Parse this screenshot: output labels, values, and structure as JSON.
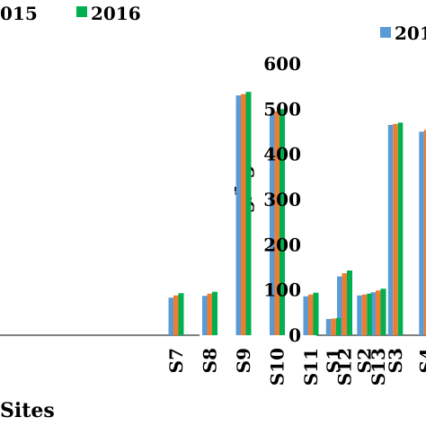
{
  "chart_data": [
    {
      "type": "bar",
      "title": "",
      "xlabel": "Sites",
      "ylabel": "",
      "ylim": [
        0,
        600
      ],
      "legend": "top",
      "grid": false,
      "legend_labels": [
        "015",
        "2016"
      ],
      "categories": [
        "S7",
        "S8",
        "S9",
        "S10",
        "S11",
        "S12",
        "S13"
      ],
      "series": [
        {
          "name": "2014",
          "color": "#5B9BD5",
          "values": [
            83,
            87,
            530,
            490,
            86,
            130,
            95
          ]
        },
        {
          "name": "2015",
          "color": "#ED7D31",
          "values": [
            88,
            92,
            533,
            495,
            90,
            137,
            99
          ]
        },
        {
          "name": "2016",
          "color": "#00B050",
          "values": [
            93,
            96,
            538,
            500,
            94,
            143,
            103
          ]
        }
      ]
    },
    {
      "type": "bar",
      "title": "",
      "xlabel": "",
      "ylabel": "mg/kg",
      "ylim": [
        0,
        600
      ],
      "yticks": [
        "0",
        "100",
        "200",
        "300",
        "400",
        "500",
        "600"
      ],
      "legend": "top-right",
      "grid": false,
      "legend_labels": [
        "201"
      ],
      "categories": [
        "S1",
        "S2",
        "S3",
        "S4"
      ],
      "series": [
        {
          "name": "2014",
          "color": "#5B9BD5",
          "values": [
            36,
            88,
            465,
            450
          ]
        },
        {
          "name": "2015",
          "color": "#ED7D31",
          "values": [
            37,
            90,
            467,
            454
          ]
        },
        {
          "name": "2016",
          "color": "#00B050",
          "values": [
            38,
            92,
            470,
            457
          ]
        }
      ]
    }
  ]
}
